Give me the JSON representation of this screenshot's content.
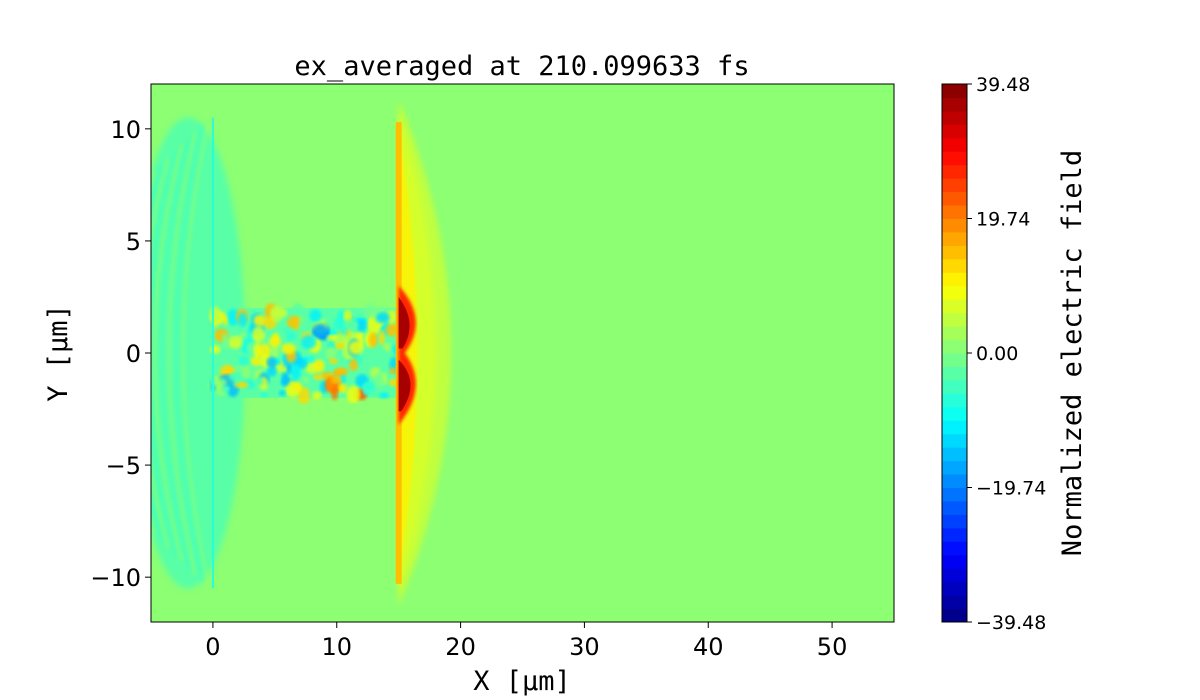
{
  "chart_data": {
    "type": "heatmap",
    "title": "ex_averaged at 210.099633 fs",
    "xlabel": "X [μm]",
    "ylabel": "Y [μm]",
    "xlim": [
      -5,
      55
    ],
    "ylim": [
      -12,
      12
    ],
    "xticks": [
      0,
      10,
      20,
      30,
      40,
      50
    ],
    "xtick_labels": [
      "0",
      "10",
      "20",
      "30",
      "40",
      "50"
    ],
    "yticks": [
      10,
      5,
      0,
      -5,
      -10
    ],
    "ytick_labels": [
      "10",
      "5",
      "0",
      "−5",
      "−10"
    ],
    "colormap": "jet",
    "colorbar": {
      "label": "Normalized electric field",
      "range": [
        -39.48,
        39.48
      ],
      "levels": 40,
      "ticks": [
        39.48,
        19.74,
        0.0,
        -19.74,
        -39.48
      ],
      "tick_labels": [
        "39.48",
        "19.74",
        "0.00",
        "−19.74",
        "−39.48"
      ]
    },
    "grid": false
  }
}
